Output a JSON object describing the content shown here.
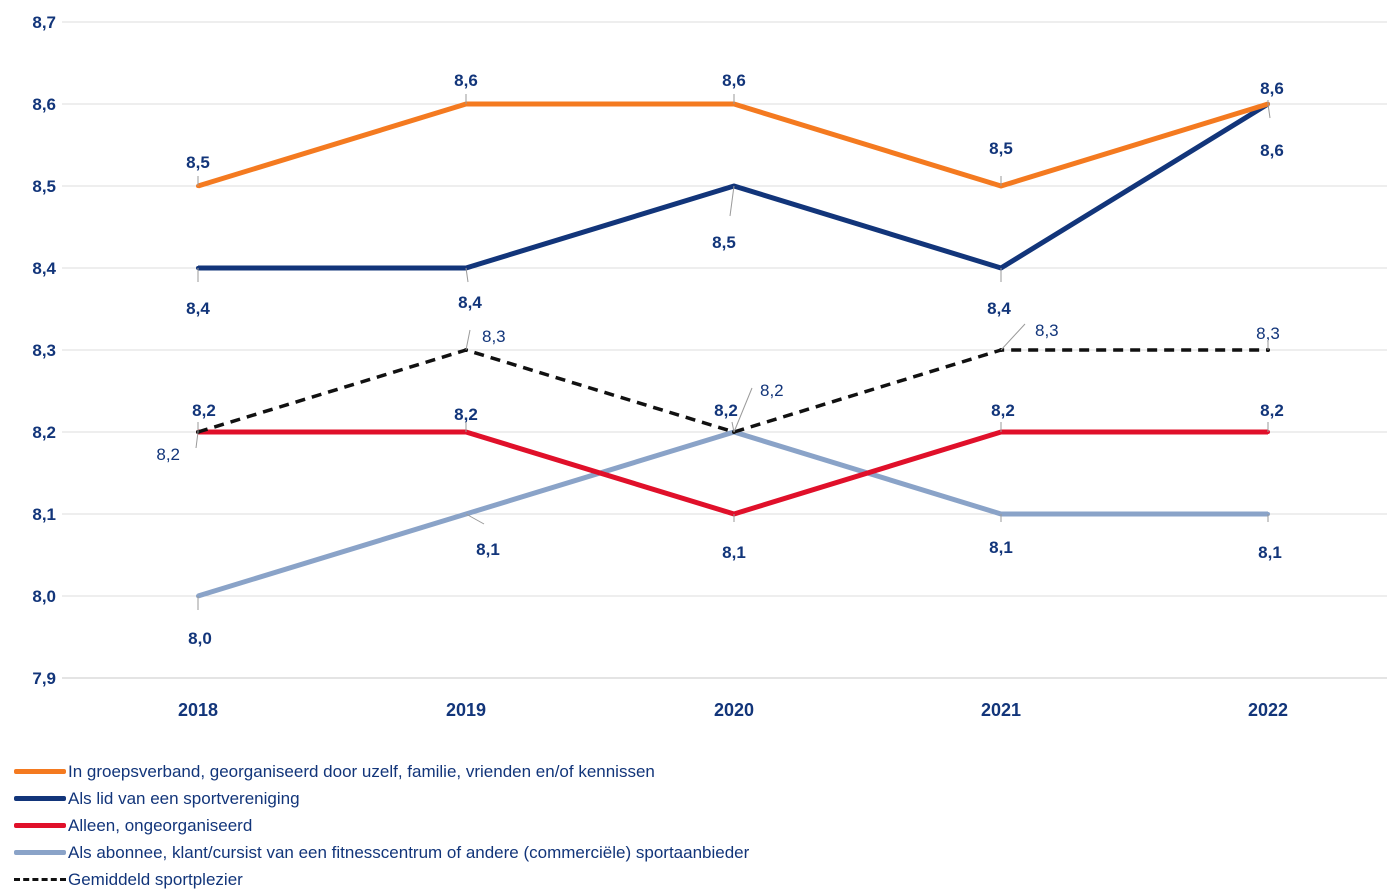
{
  "chart_data": {
    "type": "line",
    "categories": [
      "2018",
      "2019",
      "2020",
      "2021",
      "2022"
    ],
    "ylim": [
      7.9,
      8.7
    ],
    "yticks": [
      "7,9",
      "8,0",
      "8,1",
      "8,2",
      "8,3",
      "8,4",
      "8,5",
      "8,6",
      "8,7"
    ],
    "grid": true,
    "legend_position": "bottom-left",
    "series": [
      {
        "name": "In groepsverband, georganiseerd door uzelf, familie, vrienden en/of kennissen",
        "color": "#f47a20",
        "dash": "solid",
        "values": [
          8.5,
          8.6,
          8.6,
          8.5,
          8.6
        ],
        "labels": [
          "8,5",
          "8,6",
          "8,6",
          "8,5",
          "8,6"
        ]
      },
      {
        "name": "Als lid van een sportvereniging",
        "color": "#12357a",
        "dash": "solid",
        "values": [
          8.4,
          8.4,
          8.5,
          8.4,
          8.6
        ],
        "labels": [
          "8,4",
          "8,4",
          "8,5",
          "8,4",
          "8,6"
        ]
      },
      {
        "name": "Alleen, ongeorganiseerd",
        "color": "#e0102a",
        "dash": "solid",
        "values": [
          8.2,
          8.2,
          8.1,
          8.2,
          8.2
        ],
        "labels": [
          "8,2",
          "8,2",
          "8,1",
          "8,2",
          "8,2"
        ]
      },
      {
        "name": "Als abonnee, klant/cursist van een fitnesscentrum of andere (commerciële) sportaanbieder",
        "color": "#8aa3c8",
        "dash": "solid",
        "values": [
          8.0,
          8.1,
          8.2,
          8.1,
          8.1
        ],
        "labels": [
          "8,0",
          "8,1",
          "8,2",
          "8,1",
          "8,1"
        ]
      },
      {
        "name": "Gemiddeld sportplezier",
        "color": "#111111",
        "dash": "dashed",
        "values": [
          8.2,
          8.3,
          8.2,
          8.3,
          8.3
        ],
        "labels": [
          "8,2",
          "8,3",
          "8,2",
          "8,3",
          "8,3"
        ]
      }
    ]
  }
}
